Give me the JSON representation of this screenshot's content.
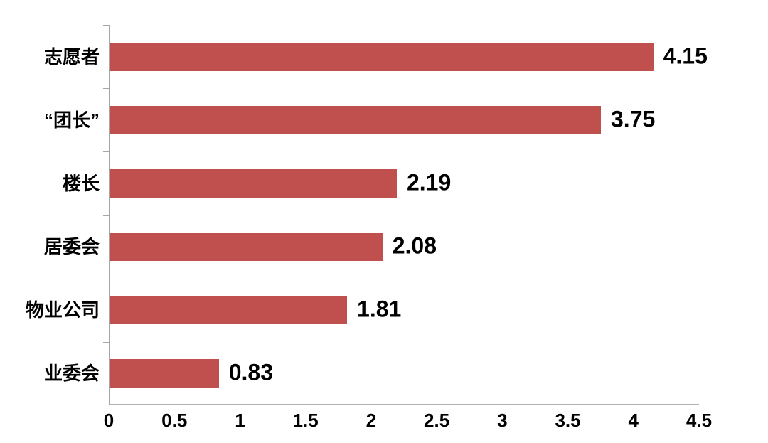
{
  "chart_data": {
    "type": "bar",
    "orientation": "horizontal",
    "title": "",
    "xlabel": "",
    "ylabel": "",
    "categories": [
      "志愿者",
      "“团长”",
      "楼长",
      "居委会",
      "物业公司",
      "业委会"
    ],
    "values": [
      4.15,
      3.75,
      2.19,
      2.08,
      1.81,
      0.83
    ],
    "value_labels": [
      "4.15",
      "3.75",
      "2.19",
      "2.08",
      "1.81",
      "0.83"
    ],
    "xlim": [
      0,
      4.5
    ],
    "x_tick_values": [
      0,
      0.5,
      1,
      1.5,
      2,
      2.5,
      3,
      3.5,
      4,
      4.5
    ],
    "x_tick_labels": [
      "0",
      "0.5",
      "1",
      "1.5",
      "2",
      "2.5",
      "3",
      "3.5",
      "4",
      "4.5"
    ],
    "grid": false,
    "legend": null,
    "bar_color": "#C0504E",
    "axis_color": "#A6A6A6",
    "text_color": "#000000",
    "background_color": "#FFFFFF"
  }
}
